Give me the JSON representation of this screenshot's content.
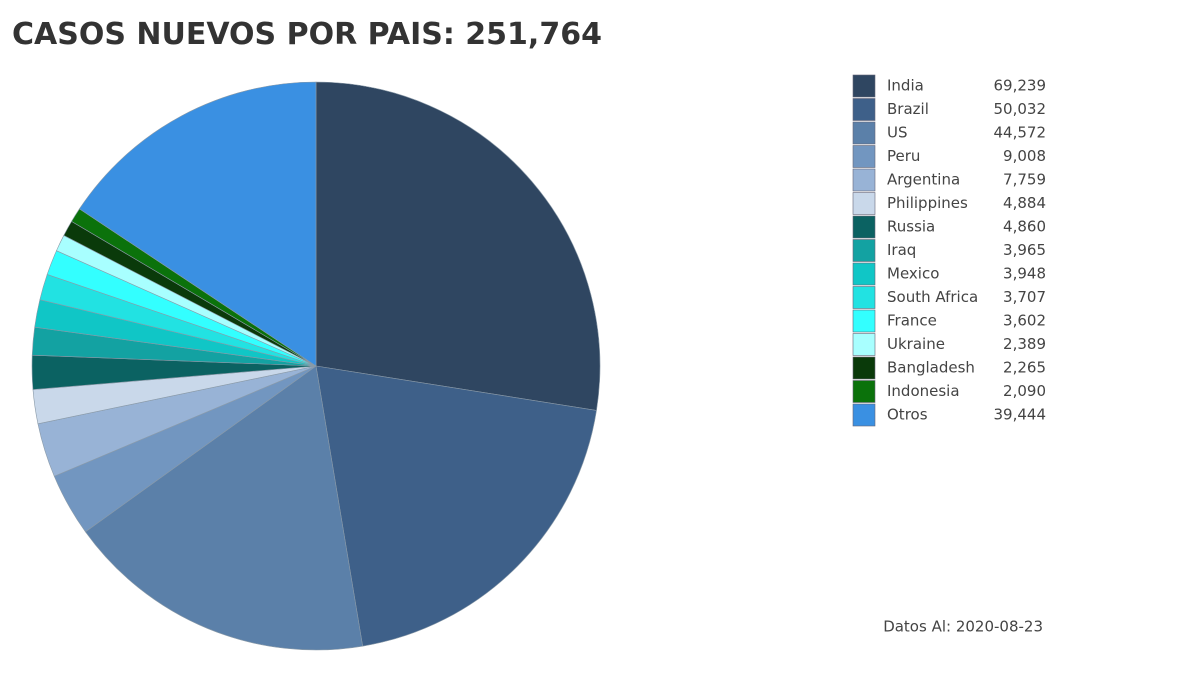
{
  "chart_data": {
    "type": "pie",
    "title": "CASOS NUEVOS POR PAIS: 251,764",
    "categories": [
      "India",
      "Brazil",
      "US",
      "Peru",
      "Argentina",
      "Philippines",
      "Russia",
      "Iraq",
      "Mexico",
      "South Africa",
      "France",
      "Ukraine",
      "Bangladesh",
      "Indonesia",
      "Otros"
    ],
    "values": [
      69239,
      50032,
      44572,
      9008,
      7759,
      4884,
      4860,
      3965,
      3948,
      3707,
      3602,
      2389,
      2265,
      2090,
      39444
    ],
    "value_labels": [
      "69,239",
      "50,032",
      "44,572",
      "9,008",
      "7,759",
      "4,884",
      "4,860",
      "3,965",
      "3,948",
      "3,707",
      "3,602",
      "2,389",
      "2,265",
      "2,090",
      "39,444"
    ],
    "colors": [
      "#2f4661",
      "#3e6089",
      "#5b80a9",
      "#7296c0",
      "#98b3d6",
      "#c9d8ea",
      "#0b6262",
      "#13a2a2",
      "#10c6c6",
      "#22e2e2",
      "#33ffff",
      "#a8ffff",
      "#0a3a0a",
      "#0b720b",
      "#3a90e2"
    ],
    "legend": "right",
    "note": "Datos Al: 2020-08-23"
  }
}
